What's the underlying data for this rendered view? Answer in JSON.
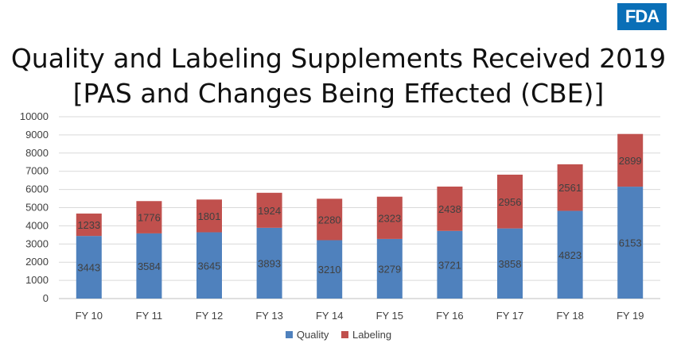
{
  "logo": {
    "text": "FDA",
    "color": "#0a6fb7"
  },
  "title": {
    "line1": "Quality and Labeling Supplements Received 2019",
    "line2": "[PAS and Changes Being Effected (CBE)]"
  },
  "chart_data": {
    "type": "bar",
    "stacked": true,
    "categories": [
      "FY 10",
      "FY 11",
      "FY 12",
      "FY 13",
      "FY 14",
      "FY 15",
      "FY 16",
      "FY 17",
      "FY 18",
      "FY 19"
    ],
    "series": [
      {
        "name": "Quality",
        "color": "#4f81bd",
        "values": [
          3443,
          3584,
          3645,
          3893,
          3210,
          3279,
          3721,
          3858,
          4823,
          6153
        ]
      },
      {
        "name": "Labeling",
        "color": "#c0504d",
        "values": [
          1233,
          1776,
          1801,
          1924,
          2280,
          2323,
          2438,
          2956,
          2561,
          2899
        ]
      }
    ],
    "ylim": [
      0,
      10000
    ],
    "yticks": [
      "0",
      "1000",
      "2000",
      "3000",
      "4000",
      "5000",
      "6000",
      "7000",
      "8000",
      "9000",
      "10000"
    ],
    "grid": true,
    "legend": "bottom"
  }
}
